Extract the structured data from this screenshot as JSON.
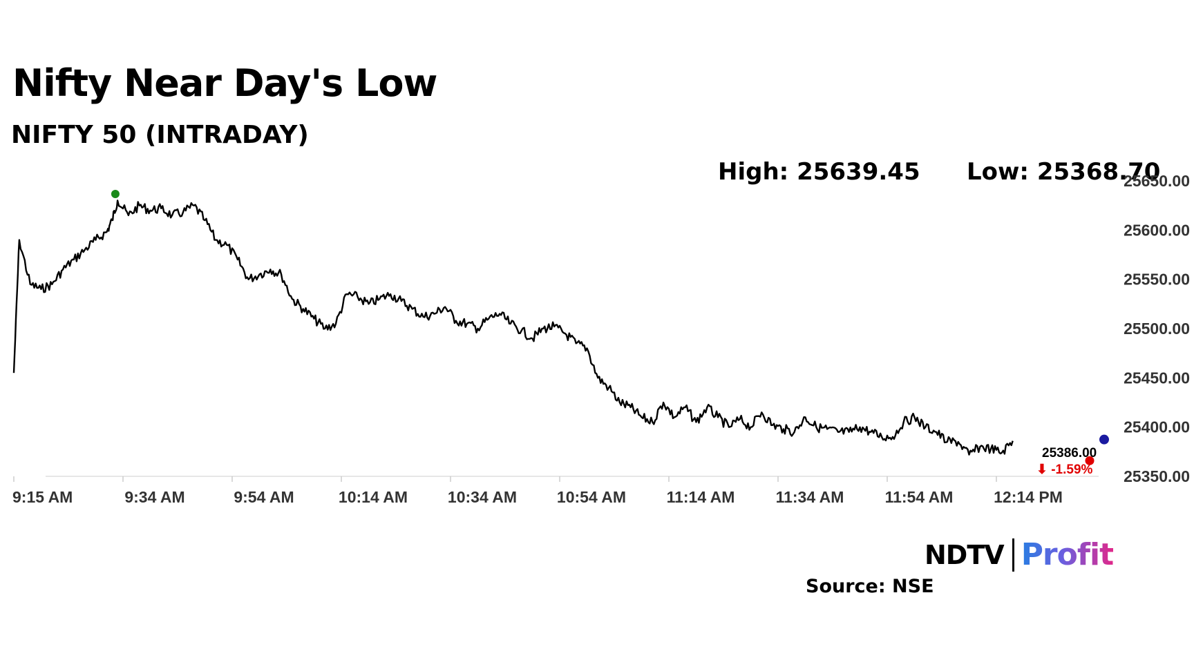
{
  "title": "Nifty Near Day's Low",
  "subtitle": "NIFTY 50 (INTRADAY)",
  "stats": {
    "high": "High: 25639.45",
    "low": "Low: 25368.70"
  },
  "logo": {
    "ndtv": "NDTV",
    "profit": "Profit"
  },
  "source": "Source: NSE",
  "colors": {
    "line": "#000000",
    "high_marker": "#1a8a1a",
    "low_marker": "#e00000",
    "last_marker": "#1a1aa0",
    "change": "#e00000"
  },
  "chart_data": {
    "type": "line",
    "title": "NIFTY 50 (INTRADAY)",
    "xlabel": "",
    "ylabel": "",
    "x_ticks": [
      "9:15 AM",
      "9:34 AM",
      "9:54 AM",
      "10:14 AM",
      "10:34 AM",
      "10:54 AM",
      "11:14 AM",
      "11:34 AM",
      "11:54 AM",
      "12:14 PM"
    ],
    "y_ticks": [
      "25350.00",
      "25400.00",
      "25450.00",
      "25500.00",
      "25550.00",
      "25600.00",
      "25650.00"
    ],
    "ylim": [
      25350,
      25650
    ],
    "grid": false,
    "last_value": "25386.00",
    "change": "⬇ -1.59%",
    "high": 25639.45,
    "low": 25368.7,
    "series": [
      {
        "x": [
          "9:15",
          "9:16",
          "9:18",
          "9:20",
          "9:22",
          "9:24",
          "9:26",
          "9:28",
          "9:30",
          "9:32",
          "9:33",
          "9:34",
          "9:36",
          "9:38",
          "9:40",
          "9:42",
          "9:44",
          "9:46",
          "9:48",
          "9:50",
          "9:52",
          "9:54",
          "9:56",
          "9:58",
          "10:00",
          "10:02",
          "10:04",
          "10:06",
          "10:08",
          "10:10",
          "10:12",
          "10:14",
          "10:16",
          "10:18",
          "10:20",
          "10:22",
          "10:24",
          "10:26",
          "10:28",
          "10:30",
          "10:32",
          "10:34",
          "10:36",
          "10:38",
          "10:40",
          "10:42",
          "10:44",
          "10:46",
          "10:48",
          "10:50",
          "10:52",
          "10:54",
          "10:56",
          "10:58",
          "11:00",
          "11:02",
          "11:04",
          "11:06",
          "11:08",
          "11:10",
          "11:12",
          "11:14",
          "11:16",
          "11:18",
          "11:20",
          "11:22",
          "11:24",
          "11:26",
          "11:28",
          "11:30",
          "11:32",
          "11:34",
          "11:36",
          "11:38",
          "11:40",
          "11:42",
          "11:44",
          "11:46",
          "11:48",
          "11:50",
          "11:52",
          "11:54",
          "11:56",
          "11:58",
          "12:00",
          "12:02",
          "12:04",
          "12:06",
          "12:08",
          "12:10",
          "12:12",
          "12:14",
          "12:16",
          "12:18"
        ],
        "values": [
          25455,
          25590,
          25545,
          25540,
          25545,
          25560,
          25570,
          25580,
          25590,
          25598,
          25610,
          25630,
          25615,
          25625,
          25620,
          25622,
          25615,
          25618,
          25625,
          25610,
          25590,
          25585,
          25570,
          25550,
          25555,
          25560,
          25555,
          25530,
          25520,
          25510,
          25500,
          25505,
          25535,
          25532,
          25525,
          25530,
          25535,
          25528,
          25520,
          25512,
          25515,
          25522,
          25508,
          25505,
          25500,
          25510,
          25515,
          25505,
          25498,
          25490,
          25500,
          25502,
          25495,
          25485,
          25480,
          25450,
          25440,
          25425,
          25420,
          25410,
          25405,
          25425,
          25410,
          25420,
          25405,
          25420,
          25410,
          25400,
          25408,
          25400,
          25415,
          25402,
          25398,
          25395,
          25410,
          25400,
          25398,
          25395,
          25395,
          25400,
          25395,
          25390,
          25390,
          25405,
          25410,
          25400,
          25395,
          25385,
          25385,
          25372,
          25380,
          25378,
          25374,
          25386
        ]
      }
    ]
  }
}
